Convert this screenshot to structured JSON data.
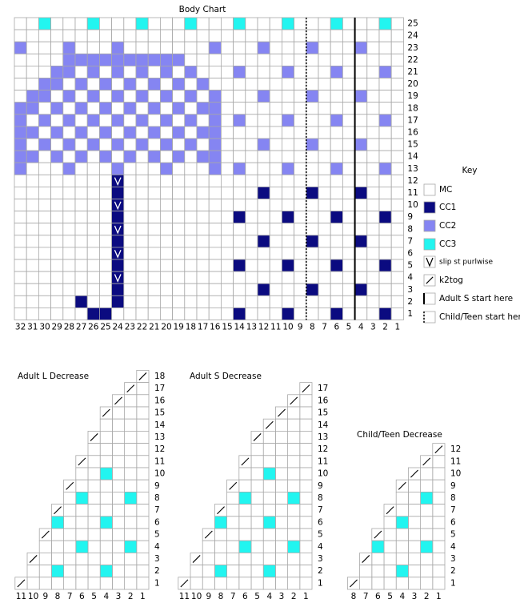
{
  "body_chart": {
    "title": "Body Chart",
    "columns": [
      32,
      31,
      30,
      29,
      28,
      27,
      26,
      25,
      24,
      23,
      22,
      21,
      20,
      19,
      18,
      17,
      16,
      15,
      14,
      13,
      12,
      11,
      10,
      9,
      8,
      7,
      6,
      5,
      4,
      3,
      2,
      1
    ],
    "rows": [
      25,
      24,
      23,
      22,
      21,
      20,
      19,
      18,
      17,
      16,
      15,
      14,
      13,
      12,
      11,
      10,
      9,
      8,
      7,
      6,
      5,
      4,
      3,
      2,
      1
    ]
  },
  "key": {
    "title": "Key",
    "items": [
      "MC",
      "CC1",
      "CC2",
      "CC3",
      "slip st purlwise",
      "k2tog",
      "Adult S start here",
      "Child/Teen start here"
    ]
  },
  "decrease_charts": [
    {
      "title": "Adult L Decrease",
      "columns": [
        11,
        10,
        9,
        8,
        7,
        6,
        5,
        4,
        3,
        2,
        1
      ],
      "rows": [
        18,
        17,
        16,
        15,
        14,
        13,
        12,
        11,
        10,
        9,
        8,
        7,
        6,
        5,
        4,
        3,
        2,
        1
      ]
    },
    {
      "title": "Adult S Decrease",
      "columns": [
        11,
        10,
        9,
        8,
        7,
        6,
        5,
        4,
        3,
        2,
        1
      ],
      "rows": [
        17,
        16,
        15,
        14,
        13,
        12,
        11,
        10,
        9,
        8,
        7,
        6,
        5,
        4,
        3,
        2,
        1
      ]
    },
    {
      "title": "Child/Teen Decrease",
      "columns": [
        8,
        7,
        6,
        5,
        4,
        3,
        2,
        1
      ],
      "rows": [
        12,
        11,
        10,
        9,
        8,
        7,
        6,
        5,
        4,
        3,
        2,
        1
      ]
    }
  ]
}
